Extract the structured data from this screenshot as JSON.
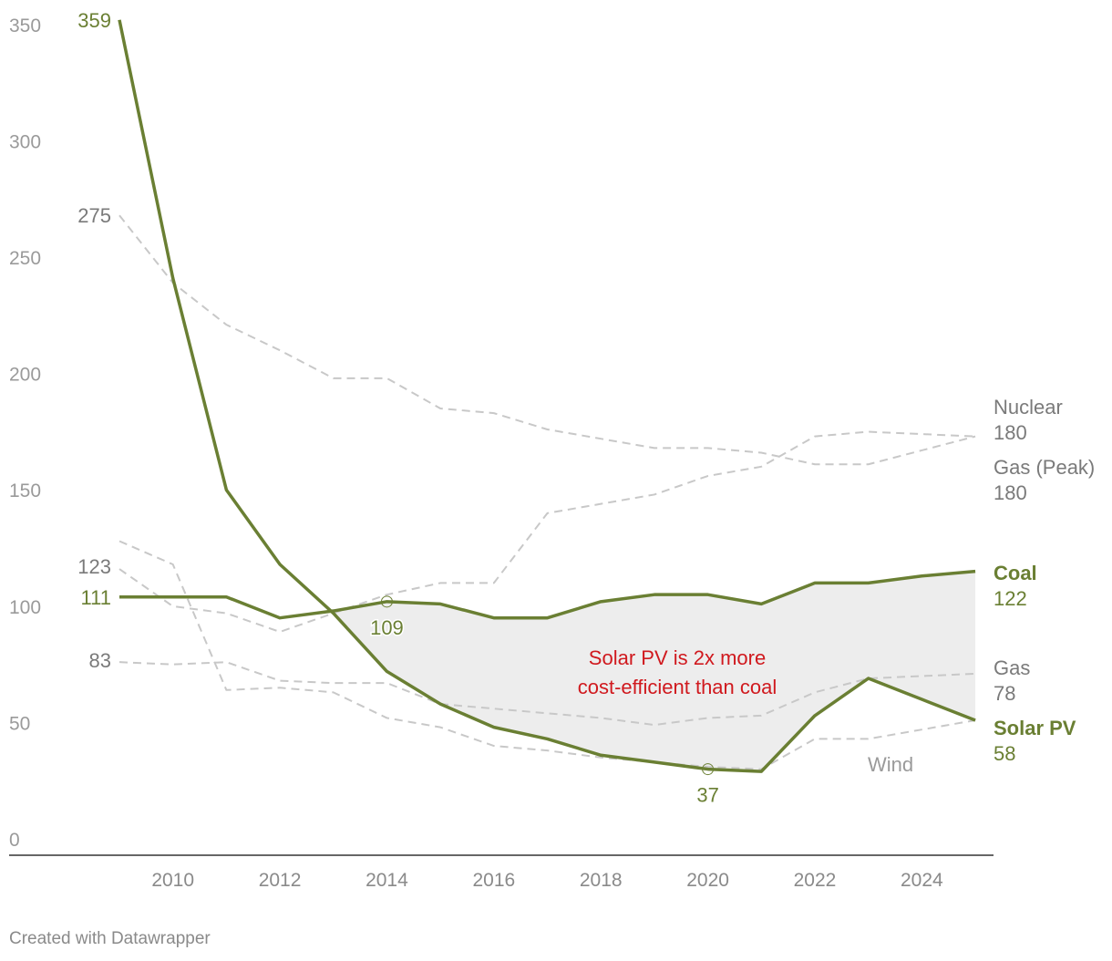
{
  "chart_data": {
    "type": "line",
    "title": "",
    "xlabel": "",
    "ylabel": "",
    "xlim": [
      2009,
      2025
    ],
    "ylim": [
      0,
      359
    ],
    "y_ticks": [
      0,
      50,
      100,
      150,
      200,
      250,
      300,
      350
    ],
    "x_ticks": [
      2010,
      2012,
      2014,
      2016,
      2018,
      2020,
      2022,
      2024
    ],
    "grid": false,
    "x": [
      2009,
      2010,
      2011,
      2012,
      2013,
      2014,
      2015,
      2016,
      2017,
      2018,
      2019,
      2020,
      2021,
      2022,
      2023,
      2024,
      2025
    ],
    "series": [
      {
        "name": "Nuclear",
        "style": "dashed",
        "color": "#c8c8c8",
        "start_label": "275",
        "end_label": "180",
        "values": [
          275,
          246,
          228,
          217,
          205,
          205,
          192,
          190,
          183,
          179,
          175,
          175,
          173,
          168,
          168,
          174,
          180
        ]
      },
      {
        "name": "Gas (Peak)",
        "style": "dashed",
        "color": "#c8c8c8",
        "start_label": "123",
        "end_label": "180",
        "values": [
          123,
          107,
          104,
          96,
          104,
          112,
          117,
          117,
          147,
          151,
          155,
          163,
          167,
          180,
          182,
          181,
          180
        ]
      },
      {
        "name": "Wind",
        "style": "dashed",
        "color": "#c8c8c8",
        "start_label": "",
        "end_label": "",
        "values": [
          135,
          125,
          71,
          72,
          70,
          59,
          55,
          47,
          45,
          42,
          40,
          38,
          37,
          50,
          50,
          54,
          58
        ]
      },
      {
        "name": "Gas",
        "style": "dashed",
        "color": "#c8c8c8",
        "start_label": "83",
        "end_label": "78",
        "values": [
          83,
          82,
          83,
          75,
          74,
          74,
          65,
          63,
          61,
          59,
          56,
          59,
          60,
          70,
          76,
          77,
          78
        ]
      },
      {
        "name": "Coal",
        "style": "solid",
        "color": "#6a7f33",
        "start_label": "111",
        "end_label": "122",
        "values": [
          111,
          111,
          111,
          102,
          105,
          109,
          108,
          102,
          102,
          109,
          112,
          112,
          108,
          117,
          117,
          120,
          122
        ]
      },
      {
        "name": "Solar PV",
        "style": "solid",
        "color": "#6a7f33",
        "start_label": "359",
        "end_label": "58",
        "values": [
          359,
          248,
          157,
          125,
          104,
          79,
          65,
          55,
          50,
          43,
          40,
          37,
          36,
          60,
          76,
          67,
          58
        ]
      }
    ],
    "highlights": [
      {
        "series": "Coal",
        "x": 2014,
        "label": "109"
      },
      {
        "series": "Solar PV",
        "x": 2020,
        "label": "37"
      }
    ],
    "shaded_between": [
      "Coal",
      "Solar PV"
    ],
    "shade_color": "#ededed",
    "annotation": {
      "lines": [
        "Solar PV is 2x more",
        "cost-efficient than coal"
      ],
      "color": "#d0191e"
    },
    "wind_label": "Wind",
    "accent_color": "#6a7f33",
    "muted_color": "#7a7a7a"
  },
  "footer": "Created with Datawrapper"
}
